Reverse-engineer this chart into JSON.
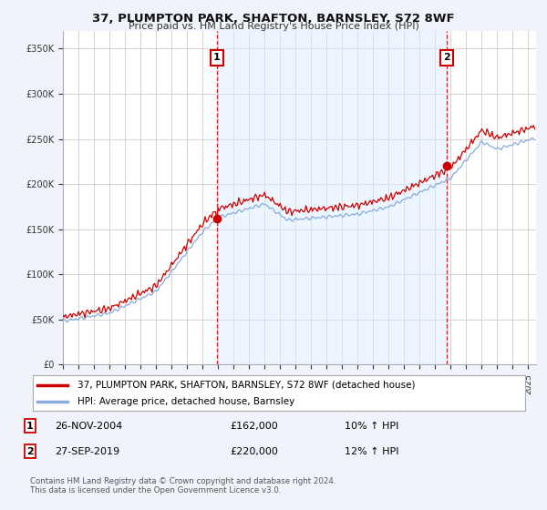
{
  "title": "37, PLUMPTON PARK, SHAFTON, BARNSLEY, S72 8WF",
  "subtitle": "Price paid vs. HM Land Registry's House Price Index (HPI)",
  "ylim": [
    0,
    370000
  ],
  "xlim_start": 1995,
  "xlim_end": 2025.5,
  "legend_line1": "37, PLUMPTON PARK, SHAFTON, BARNSLEY, S72 8WF (detached house)",
  "legend_line2": "HPI: Average price, detached house, Barnsley",
  "sale1_label": "1",
  "sale1_date": "26-NOV-2004",
  "sale1_price": "£162,000",
  "sale1_hpi": "10% ↑ HPI",
  "sale1_year": 2004.92,
  "sale1_value": 162000,
  "sale2_label": "2",
  "sale2_date": "27-SEP-2019",
  "sale2_price": "£220,000",
  "sale2_hpi": "12% ↑ HPI",
  "sale2_year": 2019.75,
  "sale2_value": 220000,
  "footnote": "Contains HM Land Registry data © Crown copyright and database right 2024.\nThis data is licensed under the Open Government Licence v3.0.",
  "line_color_red": "#cc0000",
  "line_color_blue": "#88aadd",
  "shade_color": "#ddeeff",
  "bg_color": "#f0f4fa",
  "plot_bg": "#ffffff",
  "grid_color": "#cccccc",
  "annotation_box_color": "#cc0000"
}
